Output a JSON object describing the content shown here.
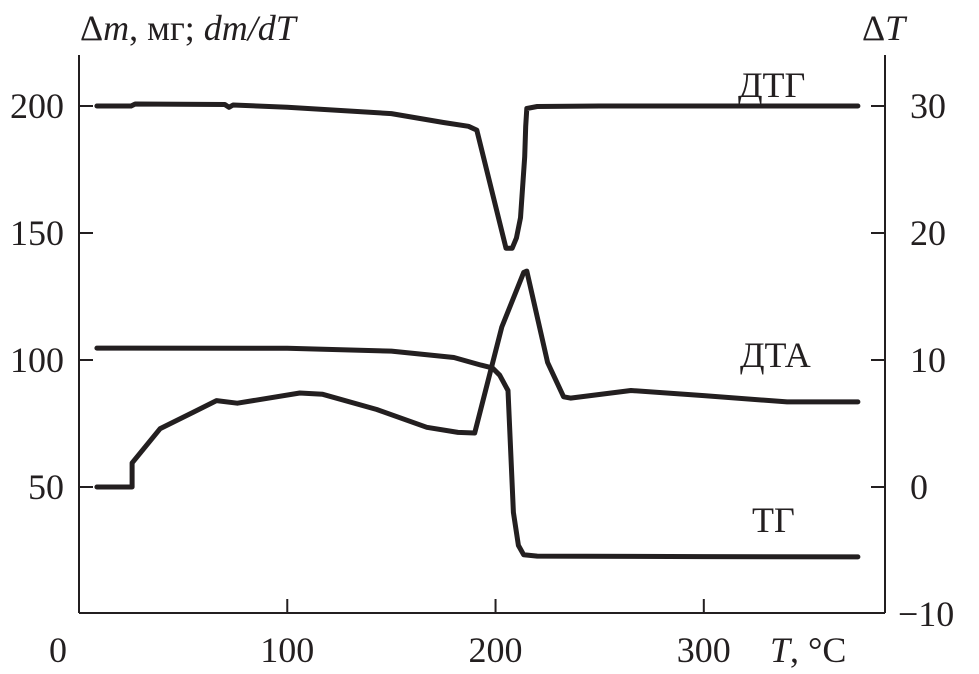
{
  "chart_data": {
    "type": "line",
    "title": "",
    "xlabel": {
      "var": "T",
      "unit": ", °C"
    },
    "ylabel_left": {
      "delta": "Δ",
      "var": "m",
      "unit": ", мг; ",
      "deriv": "dm/dT"
    },
    "ylabel_right": {
      "delta": "Δ",
      "var": "T"
    },
    "xlim": [
      0,
      387
    ],
    "ylim_left": [
      0,
      220
    ],
    "ylim_right": [
      -10,
      34
    ],
    "x_ticks": [
      0,
      100,
      200,
      300
    ],
    "y_ticks_left": [
      50,
      100,
      150,
      200
    ],
    "y_ticks_right": [
      -10,
      0,
      10,
      20,
      30
    ],
    "x_tick_labels": [
      "0",
      "100",
      "200",
      "300"
    ],
    "y_tick_labels_left": [
      "50",
      "100",
      "150",
      "200"
    ],
    "y_tick_labels_right": [
      "−10",
      "0",
      "10",
      "20",
      "30"
    ],
    "grid": false,
    "series": [
      {
        "name": "ДТГ",
        "axis": "left",
        "color": "#231f20",
        "x": [
          8.6,
          25,
          27,
          70,
          72,
          74,
          100,
          150,
          175,
          187,
          191,
          205,
          208,
          210,
          212,
          214,
          214.5,
          215,
          220,
          250,
          374
        ],
        "y": [
          200,
          200,
          200.8,
          200.6,
          199.5,
          200.4,
          199.5,
          197,
          193.5,
          192,
          190.5,
          144,
          144,
          148,
          156,
          180,
          192,
          199,
          199.8,
          200,
          200
        ]
      },
      {
        "name": "ДТА",
        "axis": "right",
        "color": "#231f20",
        "x": [
          8.6,
          25.5,
          25.5,
          39,
          55,
          66,
          76,
          106,
          117,
          143,
          167,
          182,
          190,
          203,
          213.5,
          215,
          225,
          232.7,
          236,
          265,
          300,
          340,
          374
        ],
        "y": [
          0,
          0,
          1.9,
          4.6,
          5.9,
          6.8,
          6.6,
          7.4,
          7.3,
          6.1,
          4.7,
          4.3,
          4.25,
          12.6,
          16.9,
          17,
          9.8,
          7.1,
          7.0,
          7.6,
          7.2,
          6.7,
          6.7
        ]
      },
      {
        "name": "ТГ",
        "axis": "left",
        "color": "#231f20",
        "x": [
          8.6,
          100,
          150,
          180,
          193,
          198.5,
          202,
          206,
          208.6,
          211,
          213.5,
          220,
          300,
          374
        ],
        "y": [
          104.7,
          104.6,
          103.5,
          101,
          98,
          96.9,
          94,
          88,
          40,
          27,
          23.3,
          22.8,
          22.6,
          22.5
        ]
      }
    ],
    "annotations": [
      "ДТГ",
      "ДТА",
      "ТГ"
    ]
  }
}
